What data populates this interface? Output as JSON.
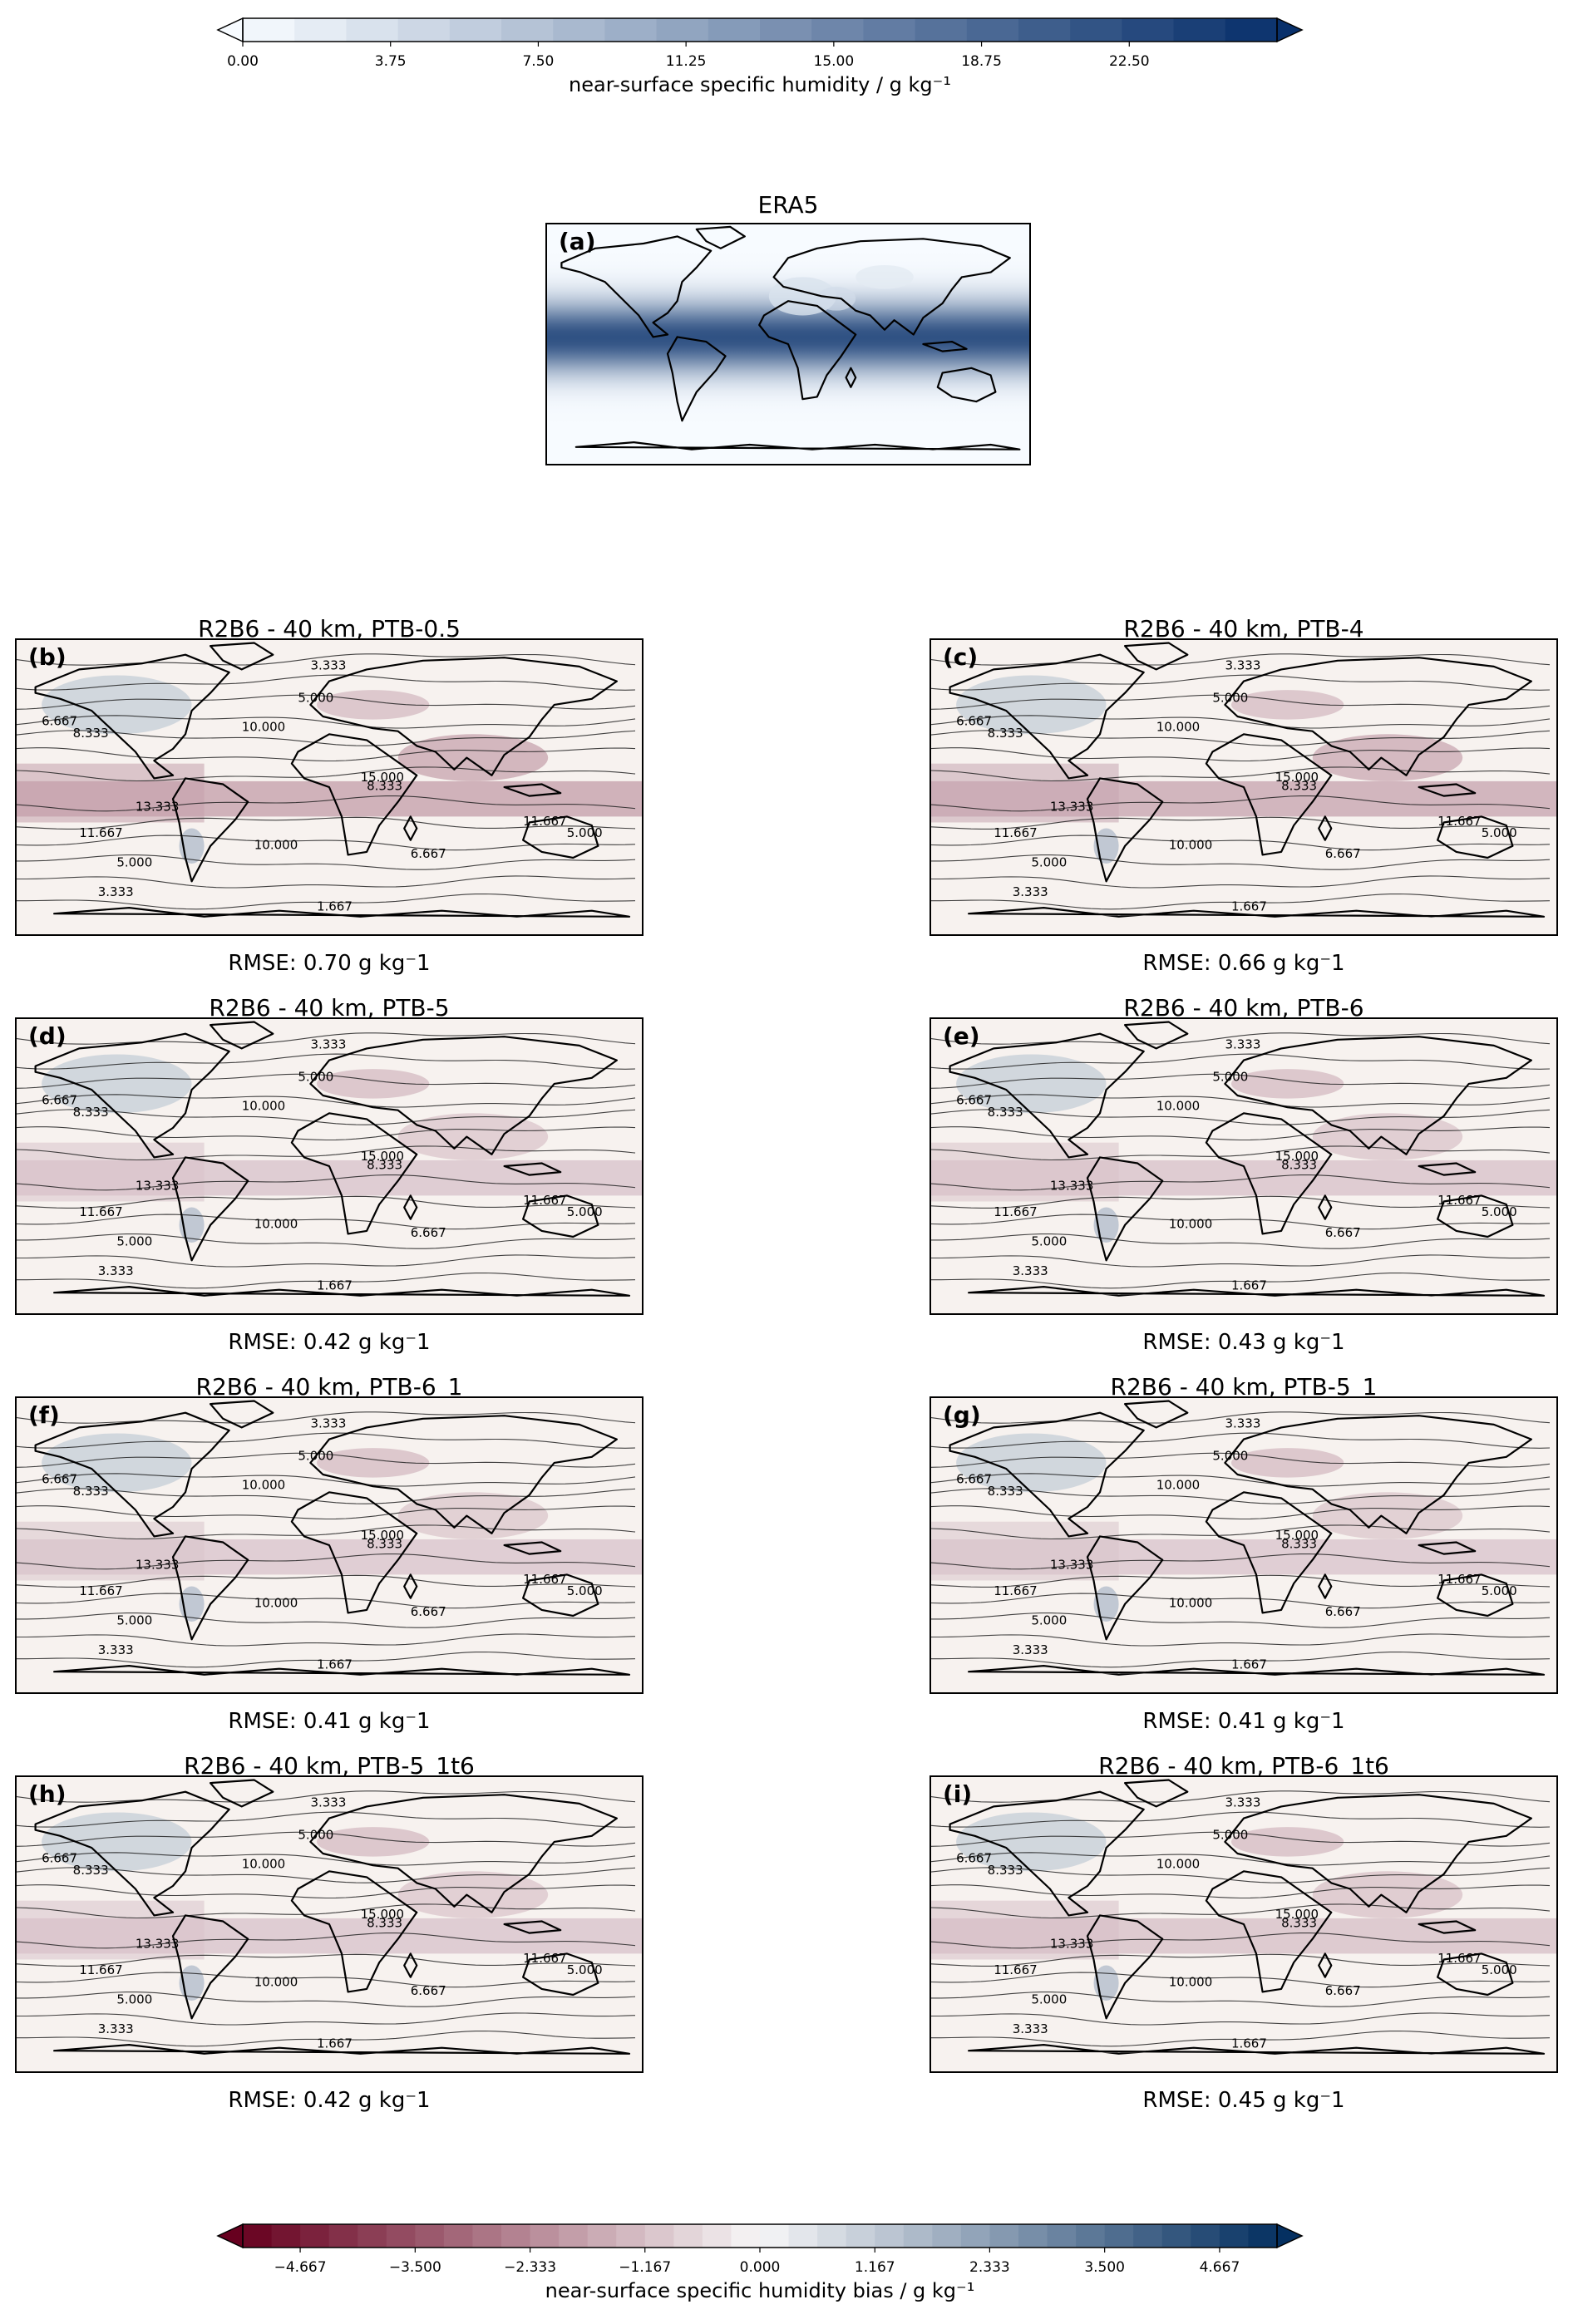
{
  "top_colorbar": {
    "label": "near-surface specific humidity / g kg⁻¹",
    "ticks": [
      "0.00",
      "3.75",
      "7.50",
      "11.25",
      "15.00",
      "18.75",
      "22.50"
    ],
    "range": [
      0,
      26.25
    ],
    "colors": [
      "#f7fbff",
      "#08306b"
    ]
  },
  "bottom_colorbar": {
    "label": "near-surface specific humidity bias / g kg⁻¹",
    "ticks": [
      "−4.667",
      "−3.500",
      "−2.333",
      "−1.167",
      "0.000",
      "1.167",
      "2.333",
      "3.500",
      "4.667"
    ],
    "range": [
      -5.25,
      5.25
    ],
    "colors": [
      "#67001f",
      "#f7f7f7",
      "#053061"
    ]
  },
  "reference_panel": {
    "title": "ERA5",
    "letter": "(a)"
  },
  "contour_labels": [
    "1.667",
    "3.333",
    "5.000",
    "6.667",
    "8.333",
    "10.000",
    "11.667",
    "13.333",
    "15.000"
  ],
  "panels": [
    {
      "title": "R2B6 - 40 km, PTB-0.5",
      "letter": "(b)",
      "rmse": "RMSE: 0.70 g kg⁻1",
      "bias_strength": 0.7
    },
    {
      "title": "R2B6 - 40 km, PTB-4",
      "letter": "(c)",
      "rmse": "RMSE: 0.66 g kg⁻1",
      "bias_strength": 0.66
    },
    {
      "title": "R2B6 - 40 km, PTB-5",
      "letter": "(d)",
      "rmse": "RMSE: 0.42 g kg⁻1",
      "bias_strength": 0.42
    },
    {
      "title": "R2B6 - 40 km, PTB-6",
      "letter": "(e)",
      "rmse": "RMSE: 0.43 g kg⁻1",
      "bias_strength": 0.43
    },
    {
      "title": "R2B6 - 40 km, PTB-6_1",
      "letter": "(f)",
      "rmse": "RMSE: 0.41 g kg⁻1",
      "bias_strength": 0.41
    },
    {
      "title": "R2B6 - 40 km, PTB-5_1",
      "letter": "(g)",
      "rmse": "RMSE: 0.41 g kg⁻1",
      "bias_strength": 0.41
    },
    {
      "title": "R2B6 - 40 km, PTB-5_1t6",
      "letter": "(h)",
      "rmse": "RMSE: 0.42 g kg⁻1",
      "bias_strength": 0.42
    },
    {
      "title": "R2B6 - 40 km, PTB-6_1t6",
      "letter": "(i)",
      "rmse": "RMSE: 0.45 g kg⁻1",
      "bias_strength": 0.45
    }
  ]
}
